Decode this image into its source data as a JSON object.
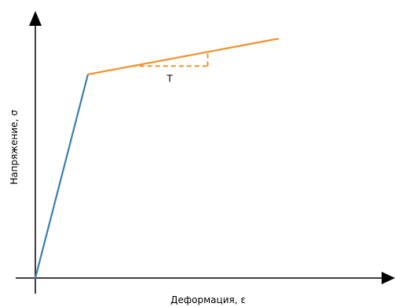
{
  "chart_data": {
    "type": "line",
    "title": "",
    "xlabel": "Деформация, ε",
    "ylabel": "Напряжение, σ",
    "ticks": "none",
    "grid": false,
    "legend": "none",
    "xlim": [
      0,
      1
    ],
    "ylim": [
      0,
      1
    ],
    "series": [
      {
        "color": "#3a7fb0",
        "x": [
          0.0,
          0.18
        ],
        "y": [
          0.0,
          0.8
        ]
      },
      {
        "color": "#f0922e",
        "x": [
          0.18,
          0.83
        ],
        "y": [
          0.8,
          0.94
        ]
      }
    ],
    "annotations": [
      {
        "kind": "slope-triangle",
        "text": "T",
        "color": "#f0922e",
        "x_from": 0.33,
        "x_to": 0.59,
        "y_base": 0.8328,
        "y_top": 0.8888
      }
    ]
  }
}
